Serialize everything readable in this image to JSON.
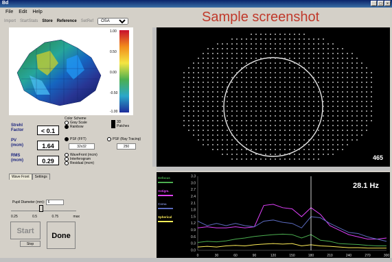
{
  "window": {
    "title": "Bd",
    "controls": [
      "_",
      "□",
      "×"
    ]
  },
  "menu": [
    {
      "label": "File"
    },
    {
      "label": "Edit"
    },
    {
      "label": "Help"
    }
  ],
  "toolbar": {
    "items": [
      {
        "label": "Import",
        "enabled": false
      },
      {
        "label": "StartStats",
        "enabled": false
      },
      {
        "label": "Store",
        "enabled": true
      },
      {
        "label": "Reference",
        "enabled": true
      },
      {
        "label": "SetRef",
        "enabled": false
      }
    ],
    "combo_value": "OSA"
  },
  "banner": "Sample screenshot",
  "colorbar": {
    "labels": [
      "1.00",
      "0.50",
      "0.00",
      "-0.50",
      "-1.00"
    ]
  },
  "metrics": [
    {
      "label_line1": "Strehl",
      "label_line2": "Factor",
      "value": "< 0.1"
    },
    {
      "label_line1": "PV",
      "label_line2": "(mcm)",
      "value": "1.64"
    },
    {
      "label_line1": "RMS",
      "label_line2": "(mcm)",
      "value": "0.29"
    }
  ],
  "color_scheme": {
    "title": "Color Scheme",
    "options": [
      {
        "label": "Gray Scale",
        "selected": false
      },
      {
        "label": "Rainbow",
        "selected": true
      }
    ]
  },
  "view_checks": [
    {
      "label": "3D",
      "checked": true
    },
    {
      "label": "Patches",
      "checked": true
    }
  ],
  "psf": {
    "fft_label": "PSF (FFT)",
    "fft_selected": true,
    "raytrace_label": "PSF (Ray Tracing)",
    "raytrace_selected": false,
    "grid_value": "32x32",
    "rays_value": "250"
  },
  "display_modes": [
    {
      "label": "WaveFront (mcm)",
      "selected": false
    },
    {
      "label": "Interferogram",
      "selected": false
    },
    {
      "label": "Residual (mcm)",
      "selected": false
    }
  ],
  "tabs": [
    {
      "label": "Wave Front",
      "active": true
    },
    {
      "label": "Settings",
      "active": false
    }
  ],
  "pupil": {
    "label": "Pupil Diameter (mm):",
    "value": "6",
    "ticks": [
      "0.25",
      "0.5",
      "0.75",
      "max"
    ],
    "level": 0.45
  },
  "buttons": {
    "start": "Start",
    "stop": "Stop",
    "done": "Done"
  },
  "spot_count": "465",
  "graph": {
    "frequency": "28.1 Hz",
    "legend": [
      {
        "label": "Defocus",
        "color": "#4caf50"
      },
      {
        "label": "Astigm.",
        "color": "#e040fb"
      },
      {
        "label": "Coma",
        "color": "#5c6bc0"
      },
      {
        "label": "Spherical",
        "color": "#ffee58"
      }
    ],
    "y_ticks": [
      "3.3",
      "3.0",
      "2.7",
      "2.4",
      "2.1",
      "1.8",
      "1.5",
      "1.2",
      "0.9",
      "0.6",
      "0.3",
      "0.0"
    ],
    "x_ticks": [
      "0",
      "30",
      "60",
      "90",
      "120",
      "150",
      "180",
      "210",
      "240",
      "270",
      "300"
    ]
  },
  "chart_data": {
    "type": "line",
    "x": [
      0,
      15,
      30,
      45,
      60,
      75,
      90,
      105,
      120,
      135,
      150,
      165,
      180,
      195,
      210,
      225,
      240,
      255,
      270,
      285,
      300
    ],
    "xlim": [
      0,
      300
    ],
    "ylim": [
      0,
      3.3
    ],
    "grid": false,
    "legend_position": "left",
    "cursor_x": 180,
    "series": [
      {
        "name": "Defocus",
        "values": [
          0.35,
          0.4,
          0.38,
          0.42,
          0.5,
          0.55,
          0.62,
          0.66,
          0.7,
          0.72,
          0.7,
          0.55,
          0.7,
          0.45,
          0.4,
          0.3,
          0.28,
          0.26,
          0.22,
          0.2,
          0.2
        ]
      },
      {
        "name": "Astigm.",
        "values": [
          1.0,
          1.05,
          1.0,
          1.0,
          1.05,
          1.0,
          1.05,
          2.0,
          2.05,
          1.9,
          1.85,
          1.5,
          1.9,
          1.6,
          1.1,
          0.9,
          0.7,
          0.6,
          0.5,
          0.5,
          0.55
        ]
      },
      {
        "name": "Coma",
        "values": [
          1.3,
          1.1,
          1.2,
          1.1,
          1.2,
          1.1,
          1.05,
          1.3,
          1.35,
          1.25,
          1.2,
          1.0,
          1.5,
          1.45,
          1.2,
          1.0,
          0.8,
          0.75,
          0.6,
          0.5,
          0.4
        ]
      },
      {
        "name": "Spherical",
        "values": [
          0.15,
          0.18,
          0.15,
          0.2,
          0.22,
          0.2,
          0.25,
          0.28,
          0.3,
          0.28,
          0.3,
          0.2,
          0.25,
          0.2,
          0.18,
          0.15,
          0.12,
          0.12,
          0.1,
          0.1,
          0.1
        ]
      }
    ]
  }
}
